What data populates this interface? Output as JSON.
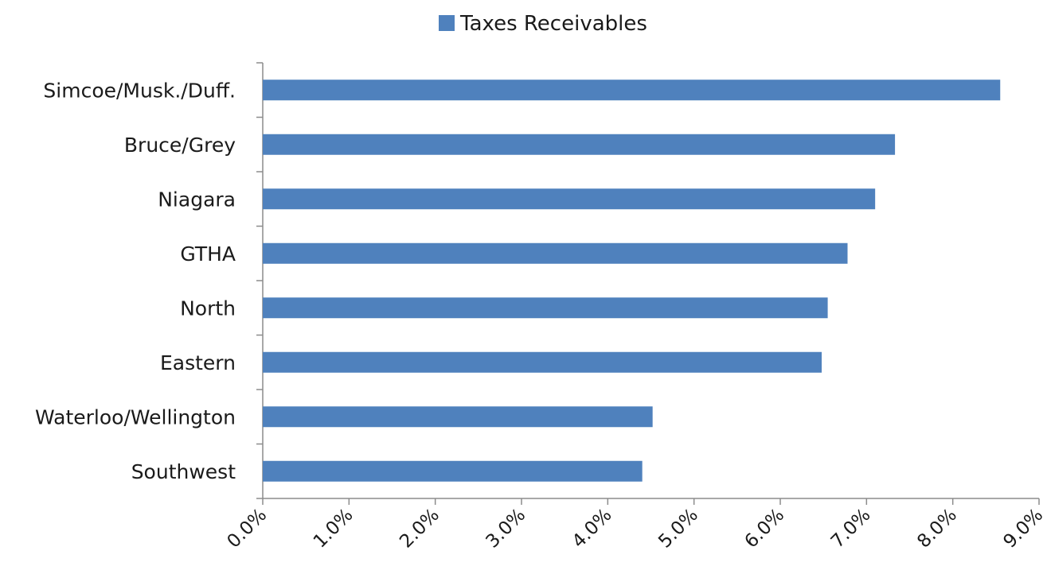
{
  "chart_data": {
    "type": "bar",
    "orientation": "horizontal",
    "categories": [
      "Simcoe/Musk./Duff.",
      "Bruce/Grey",
      "Niagara",
      "GTHA",
      "North",
      "Eastern",
      "Waterloo/Wellington",
      "Southwest"
    ],
    "series": [
      {
        "name": "Taxes Receivables",
        "values": [
          8.55,
          7.33,
          7.1,
          6.78,
          6.55,
          6.48,
          4.52,
          4.4
        ],
        "color": "#4F81BD"
      }
    ],
    "xlim": [
      0,
      9
    ],
    "x_ticks": [
      "0.0%",
      "1.0%",
      "2.0%",
      "3.0%",
      "4.0%",
      "5.0%",
      "6.0%",
      "7.0%",
      "8.0%",
      "9.0%"
    ],
    "value_format": "percent",
    "legend_position": "top",
    "grid": false
  }
}
